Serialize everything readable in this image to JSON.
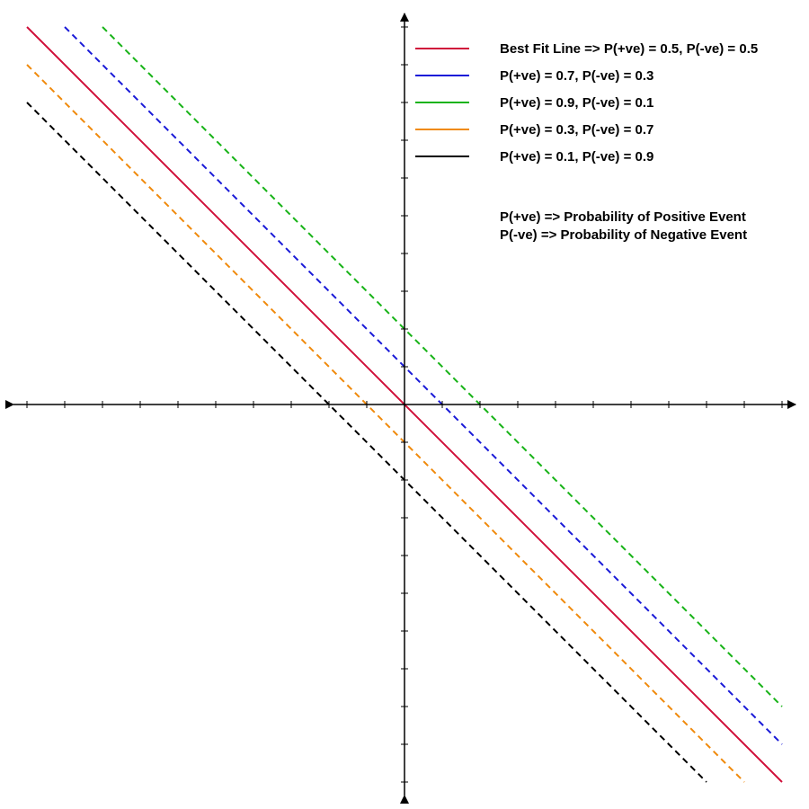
{
  "chart_data": {
    "type": "line",
    "title": "",
    "xlabel": "",
    "ylabel": "",
    "xlim": [
      -10,
      10
    ],
    "ylim": [
      -10,
      10
    ],
    "grid": false,
    "axes": "centered-arrows",
    "legend_placement": "top-right",
    "series": [
      {
        "name": "Best Fit Line => P(+ve) = 0.5, P(-ve) = 0.5",
        "color": "#d0103a",
        "style": "solid",
        "x": [
          -10,
          10
        ],
        "y": [
          10,
          -10
        ]
      },
      {
        "name": "P(+ve) = 0.7, P(-ve) = 0.3",
        "color": "#1a1ad8",
        "style": "dashed",
        "x": [
          -9,
          10
        ],
        "y": [
          10,
          -9
        ]
      },
      {
        "name": "P(+ve) = 0.9, P(-ve) = 0.1",
        "color": "#17b317",
        "style": "dashed",
        "x": [
          -8,
          10
        ],
        "y": [
          10,
          -8
        ]
      },
      {
        "name": "P(+ve) = 0.3, P(-ve) = 0.7",
        "color": "#f08a0c",
        "style": "dashed",
        "x": [
          -10,
          9
        ],
        "y": [
          9,
          -10
        ]
      },
      {
        "name": "P(+ve) = 0.1, P(-ve) = 0.9",
        "color": "#000000",
        "style": "dashed",
        "x": [
          -10,
          8
        ],
        "y": [
          8,
          -10
        ]
      }
    ],
    "notes": [
      "P(+ve) => Probability of Positive Event",
      "P(-ve) => Probability of Negative Event"
    ]
  }
}
